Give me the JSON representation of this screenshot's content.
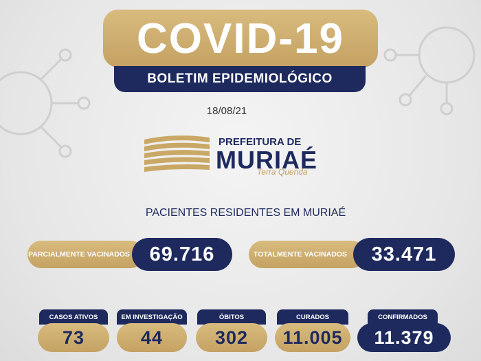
{
  "header": {
    "title": "COVID-19",
    "subtitle": "BOLETIM EPIDEMIOLÓGICO",
    "date": "18/08/21"
  },
  "logo": {
    "line1": "PREFEITURA DE",
    "line2": "MURIAÉ",
    "slogan": "Terra Querida"
  },
  "section_title": "PACIENTES RESIDENTES EM MURIAÉ",
  "vaccination": [
    {
      "label": "PARCIALMENTE VACINADOS",
      "value": "69.716"
    },
    {
      "label": "TOTALMENTE VACINADOS",
      "value": "33.471"
    }
  ],
  "stats": [
    {
      "label": "CASOS ATIVOS",
      "value": "73"
    },
    {
      "label": "EM INVESTIGAÇÃO",
      "value": "44"
    },
    {
      "label": "ÓBITOS",
      "value": "302"
    },
    {
      "label": "CURADOS",
      "value": "11.005"
    },
    {
      "label": "CONFIRMADOS",
      "value": "11.379"
    }
  ]
}
